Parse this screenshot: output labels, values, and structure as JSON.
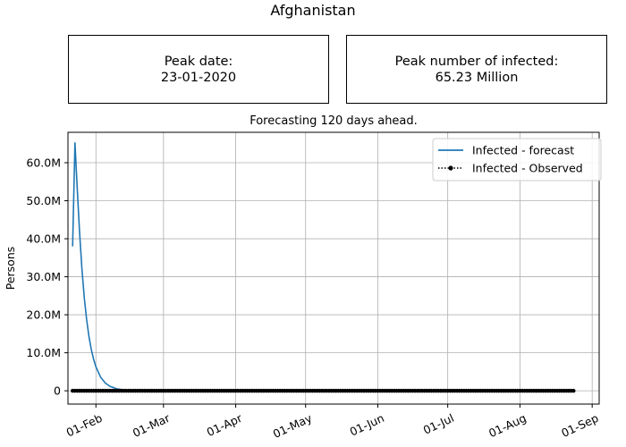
{
  "header": {
    "title": "Afghanistan"
  },
  "cards": [
    {
      "label": "Peak date:",
      "value": "23-01-2020"
    },
    {
      "label": "Peak number of infected:",
      "value": "65.23 Million"
    }
  ],
  "chart_data": {
    "type": "line",
    "title": "Forecasting 120 days ahead.",
    "ylabel": "Persons",
    "xlabel": "",
    "x_range": [
      "2020-01-20",
      "2020-09-04"
    ],
    "ylim": [
      -3500000,
      68000000
    ],
    "x_ticks": [
      {
        "date": "2020-02-01",
        "label": "01-Feb"
      },
      {
        "date": "2020-03-01",
        "label": "01-Mar"
      },
      {
        "date": "2020-04-01",
        "label": "01-Apr"
      },
      {
        "date": "2020-05-01",
        "label": "01-May"
      },
      {
        "date": "2020-06-01",
        "label": "01-Jun"
      },
      {
        "date": "2020-07-01",
        "label": "01-Jul"
      },
      {
        "date": "2020-08-01",
        "label": "01-Aug"
      },
      {
        "date": "2020-09-01",
        "label": "01-Sep"
      }
    ],
    "y_ticks": [
      {
        "value": 0,
        "label": "0"
      },
      {
        "value": 10000000,
        "label": "10.0M"
      },
      {
        "value": 20000000,
        "label": "20.0M"
      },
      {
        "value": 30000000,
        "label": "30.0M"
      },
      {
        "value": 40000000,
        "label": "40.0M"
      },
      {
        "value": 50000000,
        "label": "50.0M"
      },
      {
        "value": 60000000,
        "label": "60.0M"
      }
    ],
    "grid": true,
    "legend_position": "top-right",
    "series": [
      {
        "name": "Infected - forecast",
        "style": "line",
        "color": "#1f77b4",
        "points": [
          [
            "2020-01-22",
            38000000
          ],
          [
            "2020-01-23",
            65230000
          ],
          [
            "2020-01-24",
            53000000
          ],
          [
            "2020-01-25",
            41500000
          ],
          [
            "2020-01-26",
            32000000
          ],
          [
            "2020-01-27",
            24500000
          ],
          [
            "2020-01-28",
            18800000
          ],
          [
            "2020-01-29",
            14300000
          ],
          [
            "2020-01-30",
            10900000
          ],
          [
            "2020-01-31",
            8300000
          ],
          [
            "2020-02-01",
            6300000
          ],
          [
            "2020-02-03",
            3600000
          ],
          [
            "2020-02-05",
            2050000
          ],
          [
            "2020-02-07",
            1170000
          ],
          [
            "2020-02-10",
            500000
          ],
          [
            "2020-02-14",
            160000
          ],
          [
            "2020-02-20",
            30000
          ],
          [
            "2020-03-01",
            0
          ],
          [
            "2020-05-01",
            0
          ],
          [
            "2020-08-24",
            0
          ]
        ]
      },
      {
        "name": "Infected - Observed",
        "style": "dotted-markers",
        "color": "#000000",
        "start": "2020-01-22",
        "end": "2020-08-24",
        "value": 0
      }
    ]
  }
}
